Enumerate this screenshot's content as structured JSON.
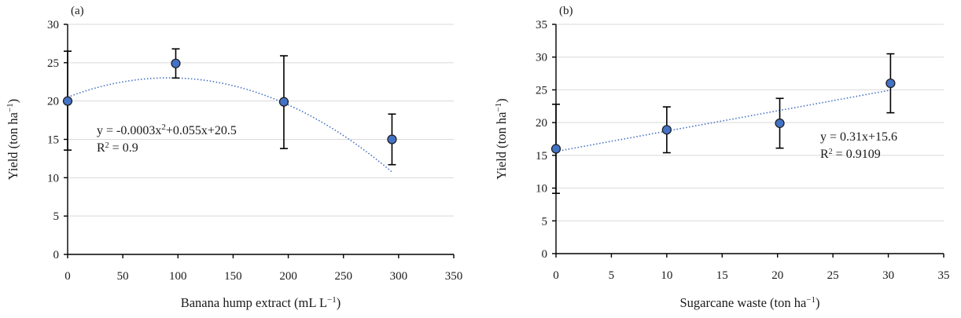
{
  "chart_data": [
    {
      "type": "scatter",
      "panel_label": "(a)",
      "xlabel": "Banana hump extract (mL L",
      "xlabel_sup": "−1",
      "xlabel_end": ")",
      "ylabel": "Yield (ton ha",
      "ylabel_sup": "−1",
      "ylabel_end": ")",
      "xlim": [
        0,
        350
      ],
      "ylim": [
        0,
        30
      ],
      "xticks": [
        0,
        50,
        100,
        150,
        200,
        250,
        300,
        350
      ],
      "yticks": [
        0,
        5,
        10,
        15,
        20,
        25,
        30
      ],
      "grid": true,
      "points": [
        {
          "x": 0,
          "y": 20,
          "err_low": 13.6,
          "err_high": 26.5
        },
        {
          "x": 98,
          "y": 24.9,
          "err_low": 23.0,
          "err_high": 26.8
        },
        {
          "x": 196,
          "y": 19.9,
          "err_low": 13.8,
          "err_high": 25.9
        },
        {
          "x": 294,
          "y": 15.0,
          "err_low": 11.7,
          "err_high": 18.3
        }
      ],
      "trendline": {
        "type": "poly2",
        "a": -0.0003,
        "b": 0.055,
        "c": 20.5,
        "x_from": 0,
        "x_to": 294
      },
      "equation": {
        "prefix": "y = -0.0003x",
        "sup": "2",
        "suffix": "+0.055x+20.5"
      },
      "r2": {
        "label": "R",
        "sup": "2",
        "value_text": " = 0.9"
      }
    },
    {
      "type": "scatter",
      "panel_label": "(b)",
      "xlabel": "Sugarcane waste (ton ha",
      "xlabel_sup": "−1",
      "xlabel_end": ")",
      "ylabel": "Yield (ton ha",
      "ylabel_sup": "−1",
      "ylabel_end": ")",
      "xlim": [
        0,
        35
      ],
      "ylim": [
        0,
        35
      ],
      "xticks": [
        0,
        5,
        10,
        15,
        20,
        25,
        30,
        35
      ],
      "yticks": [
        0,
        5,
        10,
        15,
        20,
        25,
        30,
        35
      ],
      "grid": true,
      "points": [
        {
          "x": 0,
          "y": 16.0,
          "err_low": 9.2,
          "err_high": 22.8
        },
        {
          "x": 10,
          "y": 18.9,
          "err_low": 15.4,
          "err_high": 22.4
        },
        {
          "x": 20.2,
          "y": 19.9,
          "err_low": 16.1,
          "err_high": 23.7
        },
        {
          "x": 30.2,
          "y": 26.0,
          "err_low": 21.5,
          "err_high": 30.5
        }
      ],
      "trendline": {
        "type": "linear",
        "m": 0.31,
        "c": 15.6,
        "x_from": 0,
        "x_to": 30.2
      },
      "equation": {
        "prefix": "y = 0.31x+15.6",
        "sup": "",
        "suffix": ""
      },
      "r2": {
        "label": "R",
        "sup": "2",
        "value_text": " = 0.9109"
      }
    }
  ]
}
